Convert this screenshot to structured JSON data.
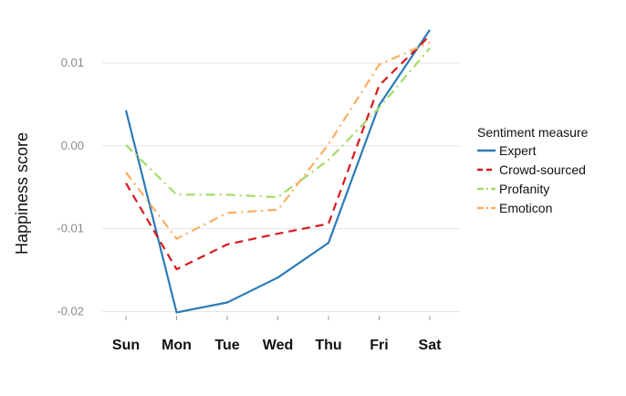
{
  "chart_data": {
    "type": "line",
    "title": "",
    "xlabel": "",
    "ylabel": "Happiness score",
    "categories": [
      "Sun",
      "Mon",
      "Tue",
      "Wed",
      "Thu",
      "Fri",
      "Sat"
    ],
    "yticks": [
      0.01,
      0.0,
      -0.01,
      -0.02
    ],
    "ytick_labels": [
      "0.01",
      "0.00",
      "-0.01",
      "-0.02"
    ],
    "ylim": [
      -0.0205,
      0.0143
    ],
    "grid": true,
    "legend": {
      "title": "Sentiment measure",
      "placement": "right"
    },
    "series": [
      {
        "name": "Expert",
        "values": [
          0.0043,
          -0.0201,
          -0.0189,
          -0.0159,
          -0.0117,
          0.0049,
          0.014
        ],
        "color": "#2c7bb6",
        "dash": "solid"
      },
      {
        "name": "Crowd-sourced",
        "values": [
          -0.0045,
          -0.0149,
          -0.0119,
          -0.0106,
          -0.0094,
          0.0073,
          0.0133
        ],
        "color": "#d7191c",
        "dash": "dashed"
      },
      {
        "name": "Profanity",
        "values": [
          0.0001,
          -0.0059,
          -0.0059,
          -0.0062,
          -0.0017,
          0.0046,
          0.0118
        ],
        "color": "#a6d96a",
        "dash": "dashdot"
      },
      {
        "name": "Emoticon",
        "values": [
          -0.0032,
          -0.0112,
          -0.0081,
          -0.0077,
          0.0002,
          0.0098,
          0.0125
        ],
        "color": "#fdae61",
        "dash": "dashdot"
      }
    ]
  }
}
